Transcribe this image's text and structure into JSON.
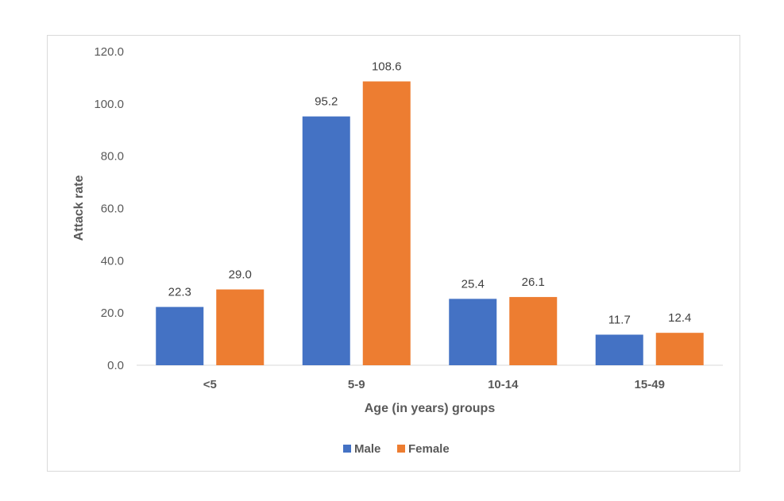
{
  "chart_data": {
    "type": "bar",
    "categories": [
      "<5",
      "5-9",
      "10-14",
      "15-49"
    ],
    "series": [
      {
        "name": "Male",
        "color": "#4472c4",
        "values": [
          22.3,
          95.2,
          25.4,
          11.7
        ]
      },
      {
        "name": "Female",
        "color": "#ed7d31",
        "values": [
          29.0,
          108.6,
          26.1,
          12.4
        ]
      }
    ],
    "data_labels": {
      "Male": [
        "22.3",
        "95.2",
        "25.4",
        "11.7"
      ],
      "Female": [
        "29.0",
        "108.6",
        "26.1",
        "12.4"
      ]
    },
    "xlabel": "Age (in years)  groups",
    "ylabel": "Attack rate",
    "ylim": [
      0,
      120
    ],
    "yticks": [
      "0.0",
      "20.0",
      "40.0",
      "60.0",
      "80.0",
      "100.0",
      "120.0"
    ],
    "ytick_values": [
      0,
      20,
      40,
      60,
      80,
      100,
      120
    ],
    "grid": false,
    "legend_position": "bottom"
  }
}
